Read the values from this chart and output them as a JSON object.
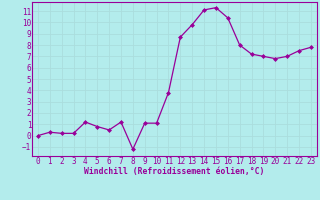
{
  "x": [
    0,
    1,
    2,
    3,
    4,
    5,
    6,
    7,
    8,
    9,
    10,
    11,
    12,
    13,
    14,
    15,
    16,
    17,
    18,
    19,
    20,
    21,
    22,
    23
  ],
  "y": [
    0,
    0.3,
    0.2,
    0.2,
    1.2,
    0.8,
    0.5,
    1.2,
    -1.2,
    1.1,
    1.1,
    3.8,
    8.7,
    9.8,
    11.1,
    11.3,
    10.4,
    8.0,
    7.2,
    7.0,
    6.8,
    7.0,
    7.5,
    7.8
  ],
  "line_color": "#990099",
  "marker_color": "#990099",
  "bg_color": "#b3ecec",
  "grid_color": "#aadddd",
  "xlabel": "Windchill (Refroidissement éolien,°C)",
  "xlabel_color": "#990099",
  "tick_color": "#990099",
  "ylim": [
    -1.8,
    11.8
  ],
  "xlim": [
    -0.5,
    23.5
  ],
  "yticks": [
    -1,
    0,
    1,
    2,
    3,
    4,
    5,
    6,
    7,
    8,
    9,
    10,
    11
  ],
  "xticks": [
    0,
    1,
    2,
    3,
    4,
    5,
    6,
    7,
    8,
    9,
    10,
    11,
    12,
    13,
    14,
    15,
    16,
    17,
    18,
    19,
    20,
    21,
    22,
    23
  ],
  "tick_fontsize": 5.5,
  "xlabel_fontsize": 5.8
}
